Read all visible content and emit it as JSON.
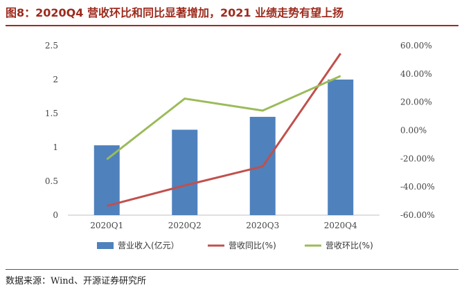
{
  "title": "图8：2020Q4 营收环比和同比显著增加，2021 业绩走势有望上扬",
  "source": "数据来源：Wind、开源证券研究所",
  "chart_data": {
    "type": "bar+line",
    "categories": [
      "2020Q1",
      "2020Q2",
      "2020Q3",
      "2020Q4"
    ],
    "left_axis": {
      "min": 0,
      "max": 2.5,
      "ticks": [
        "0",
        "0.5",
        "1",
        "1.5",
        "2",
        "2.5"
      ]
    },
    "right_axis": {
      "min": -60,
      "max": 60,
      "ticks": [
        "-60.00%",
        "-40.00%",
        "-20.00%",
        "0.00%",
        "20.00%",
        "40.00%",
        "60.00%"
      ]
    },
    "series": [
      {
        "name": "营业收入(亿元）",
        "type": "bar",
        "axis": "left",
        "color": "#4f81bd",
        "values": [
          1.03,
          1.26,
          1.45,
          2.0
        ]
      },
      {
        "name": "营收同比(%)",
        "type": "line",
        "axis": "right",
        "color": "#c0504d",
        "values": [
          -53.5,
          -39.0,
          -25.5,
          54.5
        ]
      },
      {
        "name": "营收环比(%)",
        "type": "line",
        "axis": "right",
        "color": "#9bbb59",
        "values": [
          -20.5,
          22.5,
          14.0,
          38.5
        ]
      }
    ],
    "grid": false,
    "legend_position": "bottom"
  }
}
